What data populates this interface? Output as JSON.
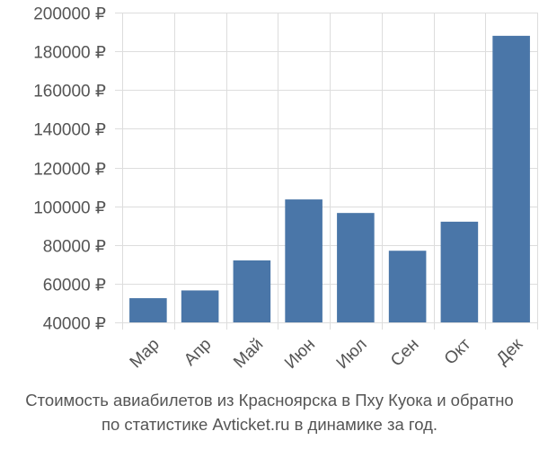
{
  "chart_data": {
    "type": "bar",
    "currency_symbol": "₽",
    "categories": [
      "Мар",
      "Апр",
      "Май",
      "Июн",
      "Июл",
      "Сен",
      "Окт",
      "Дек"
    ],
    "values": [
      52500,
      56500,
      72000,
      103500,
      96500,
      77000,
      92000,
      188000
    ],
    "ylim": [
      40000,
      200000
    ],
    "yticks": [
      40000,
      60000,
      80000,
      100000,
      120000,
      140000,
      160000,
      180000,
      200000
    ],
    "ytick_labels": [
      "40000 ₽",
      "60000 ₽",
      "80000 ₽",
      "100000 ₽",
      "120000 ₽",
      "140000 ₽",
      "160000 ₽",
      "180000 ₽",
      "200000 ₽"
    ],
    "grid": true,
    "title": "",
    "xlabel": "",
    "ylabel": "",
    "bar_color": "#4a76a8",
    "grid_color": "#dddddd"
  },
  "caption": {
    "line1": "Стоимость авиабилетов из Красноярска в Пху Куока и обратно",
    "line2": "по статистике Avticket.ru в динамике за год."
  }
}
